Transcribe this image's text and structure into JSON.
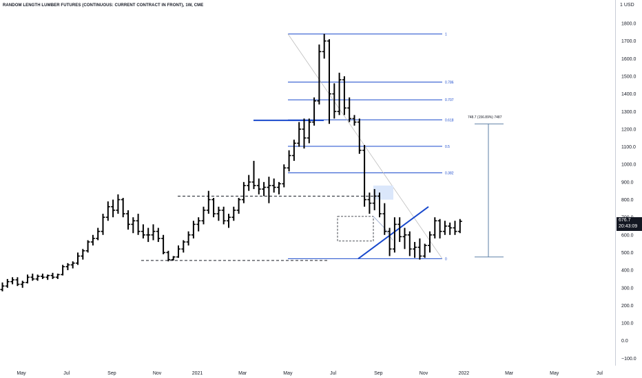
{
  "header": {
    "title": "RANDOM LENGTH LUMBER FUTURES (CONTINUOUS: CURRENT CONTRACT IN FRONT), 1W, CME",
    "currency": "USD",
    "currency_prefix": "1"
  },
  "last_price": {
    "value": "676.7",
    "countdown": "20:43:09"
  },
  "measure_label": "748.7 (156.89%) 7487",
  "chart_data": {
    "type": "candlestick-ohlc",
    "title": "RANDOM LENGTH LUMBER FUTURES (CONTINUOUS: CURRENT CONTRACT IN FRONT), 1W, CME",
    "y_ticks": [
      "1800.0",
      "1700.0",
      "1600.0",
      "1500.0",
      "1400.0",
      "1300.0",
      "1200.0",
      "1100.0",
      "1000.0",
      "900.0",
      "800.0",
      "700.0",
      "600.0",
      "500.0",
      "400.0",
      "300.0",
      "200.0",
      "100.0",
      "0.0",
      "−100.0"
    ],
    "y_tick_values": [
      1800,
      1700,
      1600,
      1500,
      1400,
      1300,
      1200,
      1100,
      1000,
      900,
      800,
      700,
      600,
      500,
      400,
      300,
      200,
      100,
      0,
      -100
    ],
    "x_ticks": [
      "May",
      "Jul",
      "Sep",
      "Nov",
      "2021",
      "Mar",
      "May",
      "Jul",
      "Sep",
      "Nov",
      "2022",
      "Mar",
      "May",
      "Jul"
    ],
    "x_tick_weeks": [
      0,
      9,
      18,
      27,
      35,
      44,
      53,
      62,
      71,
      80,
      88,
      97,
      106,
      115
    ],
    "ylim": [
      -125,
      1925
    ],
    "grid": false,
    "bars": [
      [
        290,
        330,
        280,
        310
      ],
      [
        310,
        350,
        300,
        335
      ],
      [
        335,
        360,
        320,
        345
      ],
      [
        345,
        360,
        310,
        320
      ],
      [
        320,
        340,
        300,
        330
      ],
      [
        330,
        375,
        325,
        360
      ],
      [
        360,
        380,
        340,
        350
      ],
      [
        350,
        375,
        340,
        365
      ],
      [
        365,
        380,
        350,
        360
      ],
      [
        360,
        375,
        345,
        370
      ],
      [
        370,
        385,
        350,
        360
      ],
      [
        360,
        380,
        350,
        375
      ],
      [
        375,
        430,
        370,
        420
      ],
      [
        420,
        440,
        400,
        430
      ],
      [
        430,
        450,
        410,
        440
      ],
      [
        440,
        500,
        430,
        480
      ],
      [
        480,
        520,
        460,
        510
      ],
      [
        510,
        570,
        500,
        560
      ],
      [
        560,
        600,
        540,
        580
      ],
      [
        580,
        640,
        570,
        620
      ],
      [
        620,
        720,
        600,
        700
      ],
      [
        700,
        790,
        680,
        760
      ],
      [
        760,
        800,
        700,
        740
      ],
      [
        740,
        830,
        720,
        800
      ],
      [
        800,
        810,
        700,
        720
      ],
      [
        720,
        740,
        630,
        660
      ],
      [
        660,
        700,
        610,
        680
      ],
      [
        680,
        720,
        600,
        620
      ],
      [
        620,
        660,
        580,
        600
      ],
      [
        600,
        640,
        560,
        600
      ],
      [
        600,
        660,
        570,
        620
      ],
      [
        620,
        640,
        560,
        580
      ],
      [
        580,
        600,
        490,
        500
      ],
      [
        500,
        510,
        450,
        460
      ],
      [
        460,
        480,
        455,
        475
      ],
      [
        475,
        540,
        470,
        520
      ],
      [
        520,
        570,
        500,
        560
      ],
      [
        560,
        620,
        540,
        600
      ],
      [
        600,
        680,
        580,
        660
      ],
      [
        660,
        700,
        620,
        680
      ],
      [
        680,
        760,
        660,
        740
      ],
      [
        740,
        850,
        720,
        800
      ],
      [
        800,
        810,
        700,
        720
      ],
      [
        720,
        760,
        680,
        740
      ],
      [
        740,
        760,
        660,
        680
      ],
      [
        680,
        720,
        640,
        700
      ],
      [
        700,
        760,
        680,
        740
      ],
      [
        740,
        810,
        720,
        800
      ],
      [
        800,
        900,
        780,
        880
      ],
      [
        880,
        940,
        850,
        900
      ],
      [
        900,
        1020,
        860,
        880
      ],
      [
        880,
        920,
        830,
        860
      ],
      [
        860,
        900,
        820,
        870
      ],
      [
        870,
        930,
        780,
        880
      ],
      [
        880,
        920,
        840,
        870
      ],
      [
        870,
        900,
        830,
        890
      ],
      [
        890,
        1000,
        870,
        980
      ],
      [
        980,
        1080,
        960,
        1050
      ],
      [
        1050,
        1140,
        1020,
        1120
      ],
      [
        1120,
        1240,
        1100,
        1200
      ],
      [
        1200,
        1260,
        1090,
        1150
      ],
      [
        1150,
        1260,
        1120,
        1240
      ],
      [
        1240,
        1380,
        1220,
        1360
      ],
      [
        1360,
        1680,
        1340,
        1640
      ],
      [
        1640,
        1740,
        1600,
        1700
      ],
      [
        1700,
        1710,
        1230,
        1400
      ],
      [
        1400,
        1460,
        1260,
        1300
      ],
      [
        1300,
        1520,
        1280,
        1480
      ],
      [
        1480,
        1500,
        1280,
        1320
      ],
      [
        1320,
        1380,
        1240,
        1260
      ],
      [
        1260,
        1280,
        1220,
        1240
      ],
      [
        1240,
        1260,
        1060,
        1080
      ],
      [
        1080,
        1110,
        760,
        800
      ],
      [
        800,
        840,
        720,
        780
      ],
      [
        780,
        860,
        740,
        820
      ],
      [
        820,
        840,
        700,
        720
      ],
      [
        720,
        780,
        600,
        620
      ],
      [
        620,
        640,
        480,
        520
      ],
      [
        520,
        700,
        500,
        660
      ],
      [
        660,
        700,
        560,
        590
      ],
      [
        590,
        640,
        520,
        600
      ],
      [
        600,
        620,
        480,
        520
      ],
      [
        520,
        560,
        470,
        530
      ],
      [
        530,
        580,
        460,
        480
      ],
      [
        480,
        550,
        470,
        540
      ],
      [
        540,
        620,
        500,
        600
      ],
      [
        600,
        700,
        580,
        680
      ],
      [
        680,
        690,
        580,
        620
      ],
      [
        620,
        680,
        600,
        650
      ],
      [
        650,
        670,
        600,
        640
      ],
      [
        640,
        680,
        600,
        620
      ],
      [
        620,
        690,
        610,
        677
      ]
    ],
    "fibonacci": {
      "levels": [
        1,
        0.786,
        0.707,
        0.618,
        0.5,
        0.382,
        0
      ],
      "labels": [
        "1",
        "0.786",
        "0.707",
        "0.618",
        "0.5",
        "0.382",
        "0"
      ],
      "high": 1740,
      "low": 465
    },
    "support_levels": [
      820,
      455,
      460
    ],
    "resistance_line_level": 1250,
    "trend_line": {
      "from": [
        79,
        465
      ],
      "to": [
        96,
        760
      ]
    },
    "measure_range": [
      475,
      1230
    ]
  }
}
